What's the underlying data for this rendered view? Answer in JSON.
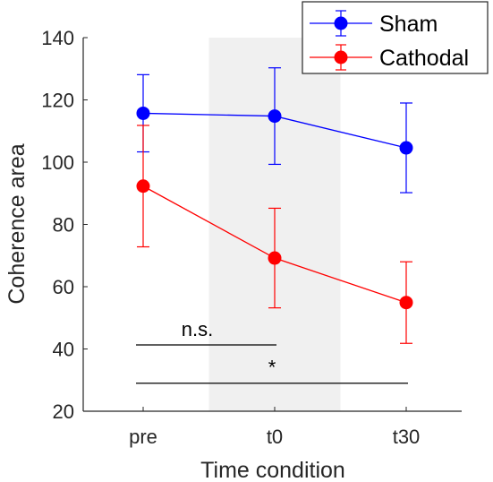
{
  "chart_data": {
    "type": "line",
    "xlabel": "Time condition",
    "ylabel": "Coherence area",
    "categories": [
      "pre",
      "t0",
      "t30"
    ],
    "ylim": [
      20,
      140
    ],
    "yticks": [
      20,
      40,
      60,
      80,
      100,
      120,
      140
    ],
    "shaded_region": {
      "from_category": 0.5,
      "to_category": 1.5,
      "color": "#f0f0f0"
    },
    "series": [
      {
        "name": "Sham",
        "color": "#0000ff",
        "values": [
          115.7,
          114.8,
          104.6
        ],
        "error": [
          12.4,
          15.5,
          14.4
        ]
      },
      {
        "name": "Cathodal",
        "color": "#ff0000",
        "values": [
          92.3,
          69.2,
          54.9
        ],
        "error": [
          19.5,
          16.0,
          13.1
        ]
      }
    ],
    "annotations": [
      {
        "text": "n.s.",
        "y": 41.3,
        "from_category": 0,
        "to_category": 1
      },
      {
        "text": "*",
        "y": 29.0,
        "from_category": 0,
        "to_category": 2
      }
    ],
    "legend": {
      "position": "top-right",
      "box": true
    }
  }
}
